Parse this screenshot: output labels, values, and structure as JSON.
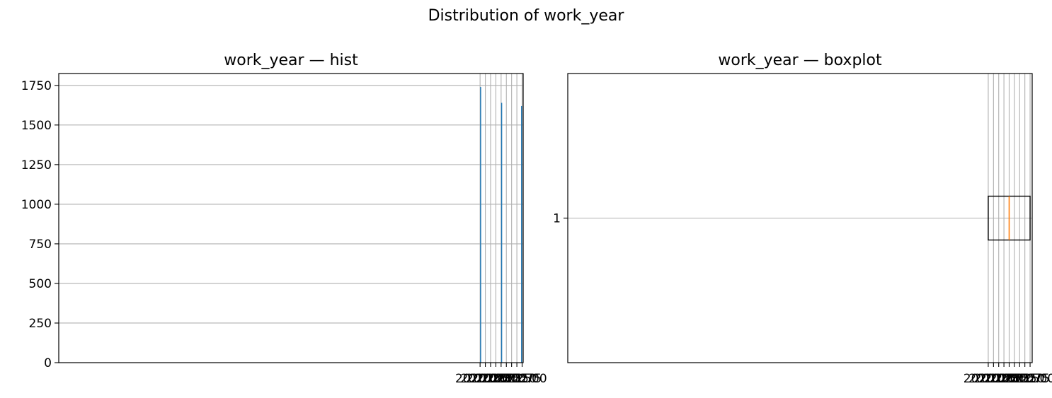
{
  "figure": {
    "title": "Distribution of work_year"
  },
  "chart_data": [
    {
      "type": "histogram",
      "title": "work_year — hist",
      "xlabel": "",
      "ylabel": "",
      "xlim": [
        1999.95,
        2022.05
      ],
      "ylim": [
        0,
        1825
      ],
      "x_ticks": [
        "2020.00",
        "2020.25",
        "2020.50",
        "2020.75",
        "2021.00",
        "2021.25",
        "2021.50",
        "2021.75",
        "2022.00"
      ],
      "y_ticks": [
        "0",
        "250",
        "500",
        "750",
        "1000",
        "1250",
        "1500",
        "1750"
      ],
      "bar_width": 0.05,
      "bars": [
        {
          "x": 2020.0,
          "value": 1740
        },
        {
          "x": 2021.0,
          "value": 1640
        },
        {
          "x": 2021.95,
          "value": 1620
        }
      ],
      "grid": true,
      "color": "#1f77b4"
    },
    {
      "type": "boxplot",
      "title": "work_year — boxplot",
      "orientation": "horizontal",
      "xlim": [
        1999.9,
        2022.1
      ],
      "x_ticks": [
        "2020.00",
        "2020.25",
        "2020.50",
        "2020.75",
        "2021.00",
        "2021.25",
        "2021.50",
        "2021.75",
        "2022.00"
      ],
      "y_ticks": [
        "1"
      ],
      "box": {
        "min": 2020.0,
        "q1": 2020.0,
        "median": 2021.0,
        "q3": 2022.0,
        "max": 2022.0
      },
      "grid": true,
      "median_color": "#ff7f0e"
    }
  ]
}
